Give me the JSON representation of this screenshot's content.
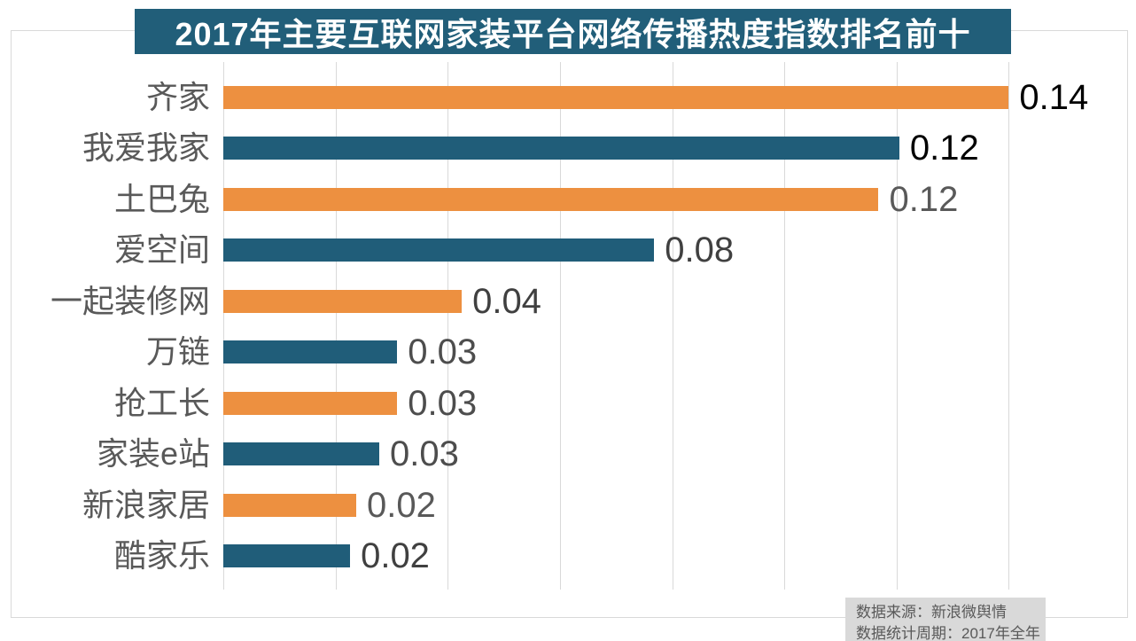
{
  "title": {
    "text": "2017年主要互联网家装平台网络传播热度指数排名前十",
    "background": "#215e79",
    "text_color": "#ffffff"
  },
  "chart_data": {
    "type": "bar",
    "orientation": "horizontal",
    "title": "2017年主要互联网家装平台网络传播热度指数排名前十",
    "categories": [
      "齐家",
      "我爱我家",
      "土巴兔",
      "爱空间",
      "一起装修网",
      "万链",
      "抢工长",
      "家装e站",
      "新浪家居",
      "酷家乐"
    ],
    "values": [
      0.14,
      0.12,
      0.12,
      0.08,
      0.04,
      0.03,
      0.03,
      0.03,
      0.02,
      0.02
    ],
    "value_labels": [
      "0.14",
      "0.12",
      "0.12",
      "0.08",
      "0.04",
      "0.03",
      "0.03",
      "0.03",
      "0.02",
      "0.02"
    ],
    "measured_values": [
      0.14,
      0.1205,
      0.1168,
      0.0768,
      0.0425,
      0.031,
      0.031,
      0.0278,
      0.0237,
      0.0226
    ],
    "xlim": [
      0,
      0.16
    ],
    "gridline_interval": 0.02,
    "gridline_count": 8,
    "grid_color": "#d9d9d9",
    "bar_colors": [
      "#ed9040",
      "#205d79"
    ],
    "category_label_color": "#595959",
    "value_label_colors": [
      "#000000",
      "#000000",
      "#595959",
      "#404040",
      "#404040",
      "#4d4d4d",
      "#4d4d4d",
      "#4d4d4d",
      "#595959",
      "#404040"
    ],
    "legend": "none",
    "xlabel": "",
    "ylabel": ""
  },
  "footer": {
    "source": "数据来源：新浪微舆情",
    "period": "数据统计周期：2017年全年",
    "background": "#d9d9d9",
    "text_color": "#595959"
  }
}
